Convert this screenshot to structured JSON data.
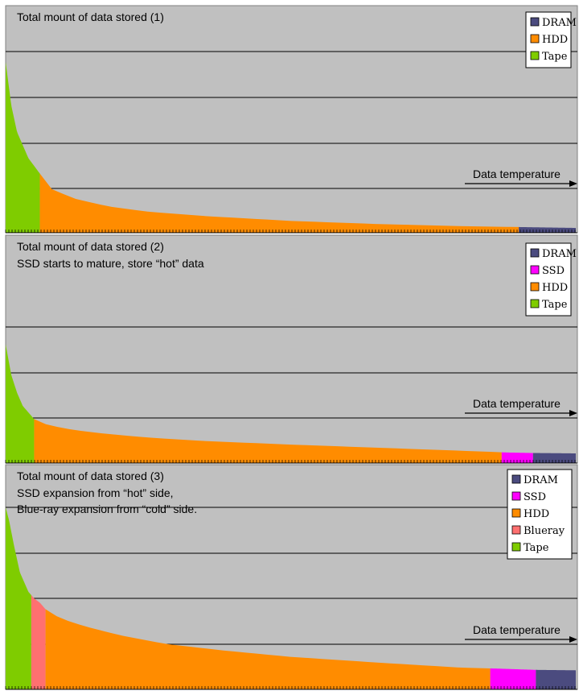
{
  "palette": {
    "background": "#C0C0C0",
    "grid": "#000000",
    "DRAM": "#4B4B7F",
    "SSD": "#FF00FF",
    "HDD": "#FF8C00",
    "Blueray": "#FF7070",
    "Tape": "#7FCC00"
  },
  "chart_data": [
    {
      "type": "area",
      "title": "Total mount of data stored (1)",
      "subtitle": "",
      "xlabel": "Data temperature",
      "ylabel": "",
      "grid": true,
      "legend_position": "top-right",
      "x": [
        0,
        1,
        2,
        4,
        6,
        8,
        12,
        18,
        25,
        35,
        50,
        65,
        80,
        90,
        100
      ],
      "curve": [
        3.9,
        2.9,
        2.3,
        1.7,
        1.35,
        1.0,
        0.78,
        0.6,
        0.48,
        0.38,
        0.27,
        0.2,
        0.15,
        0.13,
        0.11
      ],
      "ylim": [
        0,
        5
      ],
      "segments": [
        {
          "name": "Tape",
          "from": 0,
          "to": 6
        },
        {
          "name": "HDD",
          "from": 6,
          "to": 90
        },
        {
          "name": "DRAM",
          "from": 90,
          "to": 100
        }
      ],
      "legend": [
        "DRAM",
        "HDD",
        "Tape"
      ]
    },
    {
      "type": "area",
      "title": "Total mount of data stored (2)",
      "subtitle": "SSD starts to mature, store “hot” data",
      "xlabel": "Data temperature",
      "ylabel": "",
      "grid": true,
      "legend_position": "top-right",
      "x": [
        0,
        1,
        2,
        3,
        4,
        5,
        6,
        8,
        12,
        18,
        25,
        35,
        50,
        65,
        80,
        88,
        92,
        100
      ],
      "curve": [
        2.7,
        2.0,
        1.6,
        1.3,
        1.15,
        1.0,
        0.92,
        0.85,
        0.75,
        0.66,
        0.58,
        0.5,
        0.42,
        0.35,
        0.28,
        0.24,
        0.23,
        0.22
      ],
      "ylim": [
        0,
        5
      ],
      "segments": [
        {
          "name": "Tape",
          "from": 0,
          "to": 5
        },
        {
          "name": "HDD",
          "from": 5,
          "to": 87
        },
        {
          "name": "SSD",
          "from": 87,
          "to": 92.5
        },
        {
          "name": "DRAM",
          "from": 92.5,
          "to": 100
        }
      ],
      "legend": [
        "DRAM",
        "SSD",
        "HDD",
        "Tape"
      ]
    },
    {
      "type": "area",
      "title": "Total mount of data stored (3)",
      "subtitle": "SSD expansion from “hot” side,",
      "subtitle2": "Blue-ray expansion from “cold” side.",
      "xlabel": "Data temperature",
      "ylabel": "",
      "grid": true,
      "legend_position": "top-right",
      "x": [
        0,
        0.6,
        1.5,
        2.5,
        4,
        5,
        6,
        7,
        8,
        10,
        14,
        20,
        28,
        38,
        50,
        65,
        80,
        86,
        93,
        100
      ],
      "curve": [
        4.2,
        3.9,
        3.3,
        2.7,
        2.25,
        2.1,
        2.0,
        1.85,
        1.75,
        1.62,
        1.45,
        1.25,
        1.05,
        0.9,
        0.75,
        0.62,
        0.5,
        0.48,
        0.45,
        0.44
      ],
      "ylim": [
        0,
        5
      ],
      "segments": [
        {
          "name": "Tape",
          "from": 0,
          "to": 4.5
        },
        {
          "name": "Blueray",
          "from": 4.5,
          "to": 7
        },
        {
          "name": "HDD",
          "from": 7,
          "to": 85
        },
        {
          "name": "SSD",
          "from": 85,
          "to": 93
        },
        {
          "name": "DRAM",
          "from": 93,
          "to": 100
        }
      ],
      "legend": [
        "DRAM",
        "SSD",
        "HDD",
        "Blueray",
        "Tape"
      ]
    }
  ]
}
